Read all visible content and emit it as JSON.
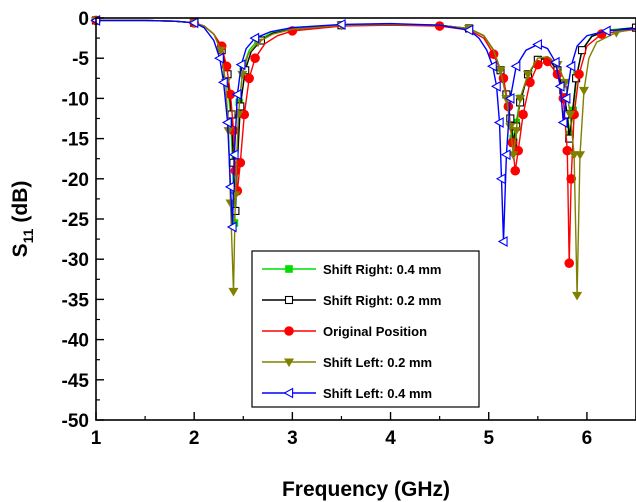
{
  "chart_data": {
    "type": "line",
    "title": "",
    "xlabel": "Frequency (GHz)",
    "ylabel_main": "S",
    "ylabel_sub": "11",
    "ylabel_unit": "(dB)",
    "xlim": [
      1,
      6.5
    ],
    "ylim": [
      -50,
      0
    ],
    "xticks": [
      1,
      2,
      3,
      4,
      5,
      6
    ],
    "yticks": [
      0,
      -5,
      -10,
      -15,
      -20,
      -25,
      -30,
      -35,
      -40,
      -45,
      -50
    ],
    "grid": false,
    "legend_position": "bottom-center",
    "series": [
      {
        "name": "Shift Right: 0.4 mm",
        "color": "#00dd00",
        "marker": "square-filled",
        "points": [
          [
            1,
            -0.3
          ],
          [
            1.5,
            -0.3
          ],
          [
            1.8,
            -0.4
          ],
          [
            2.0,
            -0.6
          ],
          [
            2.1,
            -1.0
          ],
          [
            2.2,
            -2.0
          ],
          [
            2.28,
            -4.0
          ],
          [
            2.33,
            -7.0
          ],
          [
            2.37,
            -12.0
          ],
          [
            2.39,
            -18.0
          ],
          [
            2.41,
            -25.5
          ],
          [
            2.43,
            -18.0
          ],
          [
            2.46,
            -10.5
          ],
          [
            2.5,
            -6.0
          ],
          [
            2.56,
            -4.0
          ],
          [
            2.65,
            -2.7
          ],
          [
            2.8,
            -1.8
          ],
          [
            3.0,
            -1.3
          ],
          [
            3.5,
            -0.9
          ],
          [
            4.0,
            -0.8
          ],
          [
            4.5,
            -0.9
          ],
          [
            4.8,
            -1.3
          ],
          [
            4.95,
            -2.2
          ],
          [
            5.05,
            -4.0
          ],
          [
            5.12,
            -6.5
          ],
          [
            5.18,
            -9.5
          ],
          [
            5.22,
            -12.5
          ],
          [
            5.25,
            -15.0
          ],
          [
            5.28,
            -13.0
          ],
          [
            5.32,
            -10.0
          ],
          [
            5.4,
            -7.0
          ],
          [
            5.5,
            -5.2
          ],
          [
            5.6,
            -5.0
          ],
          [
            5.7,
            -6.5
          ],
          [
            5.76,
            -9.0
          ],
          [
            5.8,
            -12.0
          ],
          [
            5.83,
            -14.5
          ],
          [
            5.86,
            -11.5
          ],
          [
            5.9,
            -7.0
          ],
          [
            5.95,
            -4.0
          ],
          [
            6.05,
            -2.2
          ],
          [
            6.2,
            -1.5
          ],
          [
            6.5,
            -1.2
          ]
        ]
      },
      {
        "name": "Shift Right: 0.2 mm",
        "color": "#000000",
        "marker": "square-open",
        "points": [
          [
            1,
            -0.3
          ],
          [
            1.5,
            -0.3
          ],
          [
            1.8,
            -0.4
          ],
          [
            2.0,
            -0.6
          ],
          [
            2.1,
            -1.0
          ],
          [
            2.2,
            -2.0
          ],
          [
            2.28,
            -4.0
          ],
          [
            2.34,
            -7.0
          ],
          [
            2.38,
            -12.0
          ],
          [
            2.4,
            -18.0
          ],
          [
            2.42,
            -24.0
          ],
          [
            2.44,
            -18.0
          ],
          [
            2.47,
            -11.0
          ],
          [
            2.52,
            -6.5
          ],
          [
            2.58,
            -4.2
          ],
          [
            2.68,
            -2.8
          ],
          [
            2.8,
            -1.9
          ],
          [
            3.0,
            -1.4
          ],
          [
            3.5,
            -0.9
          ],
          [
            4.0,
            -0.8
          ],
          [
            4.5,
            -0.9
          ],
          [
            4.8,
            -1.3
          ],
          [
            4.95,
            -2.2
          ],
          [
            5.05,
            -4.0
          ],
          [
            5.12,
            -6.5
          ],
          [
            5.18,
            -9.5
          ],
          [
            5.22,
            -12.5
          ],
          [
            5.25,
            -15.5
          ],
          [
            5.28,
            -13.5
          ],
          [
            5.32,
            -10.5
          ],
          [
            5.4,
            -7.0
          ],
          [
            5.5,
            -5.2
          ],
          [
            5.6,
            -5.0
          ],
          [
            5.7,
            -6.5
          ],
          [
            5.76,
            -9.0
          ],
          [
            5.8,
            -12.0
          ],
          [
            5.82,
            -15.0
          ],
          [
            5.85,
            -12.0
          ],
          [
            5.89,
            -7.5
          ],
          [
            5.95,
            -4.0
          ],
          [
            6.05,
            -2.3
          ],
          [
            6.2,
            -1.6
          ],
          [
            6.5,
            -1.2
          ]
        ]
      },
      {
        "name": "Original Position",
        "color": "#ff0000",
        "marker": "circle-filled",
        "points": [
          [
            1,
            -0.3
          ],
          [
            1.5,
            -0.3
          ],
          [
            1.8,
            -0.4
          ],
          [
            2.0,
            -0.6
          ],
          [
            2.1,
            -1.0
          ],
          [
            2.2,
            -2.0
          ],
          [
            2.28,
            -3.5
          ],
          [
            2.33,
            -6.0
          ],
          [
            2.37,
            -9.5
          ],
          [
            2.4,
            -14.0
          ],
          [
            2.42,
            -19.0
          ],
          [
            2.44,
            -21.5
          ],
          [
            2.47,
            -18.0
          ],
          [
            2.51,
            -12.0
          ],
          [
            2.56,
            -7.5
          ],
          [
            2.62,
            -5.0
          ],
          [
            2.72,
            -3.2
          ],
          [
            2.85,
            -2.2
          ],
          [
            3.0,
            -1.6
          ],
          [
            3.5,
            -1.0
          ],
          [
            4.0,
            -0.9
          ],
          [
            4.5,
            -1.0
          ],
          [
            4.8,
            -1.5
          ],
          [
            4.95,
            -2.5
          ],
          [
            5.05,
            -4.5
          ],
          [
            5.15,
            -7.5
          ],
          [
            5.2,
            -11.0
          ],
          [
            5.24,
            -15.5
          ],
          [
            5.27,
            -19.0
          ],
          [
            5.3,
            -16.5
          ],
          [
            5.35,
            -12.0
          ],
          [
            5.42,
            -8.0
          ],
          [
            5.5,
            -5.8
          ],
          [
            5.6,
            -5.4
          ],
          [
            5.7,
            -7.0
          ],
          [
            5.76,
            -10.0
          ],
          [
            5.8,
            -16.5
          ],
          [
            5.82,
            -30.5
          ],
          [
            5.84,
            -20.0
          ],
          [
            5.87,
            -12.0
          ],
          [
            5.92,
            -7.0
          ],
          [
            6.0,
            -3.5
          ],
          [
            6.15,
            -2.0
          ],
          [
            6.5,
            -1.4
          ]
        ]
      },
      {
        "name": "Shift Left: 0.2 mm",
        "color": "#808000",
        "marker": "triangle-down-filled",
        "points": [
          [
            1,
            -0.3
          ],
          [
            1.5,
            -0.3
          ],
          [
            1.8,
            -0.4
          ],
          [
            2.0,
            -0.6
          ],
          [
            2.1,
            -1.0
          ],
          [
            2.2,
            -2.0
          ],
          [
            2.27,
            -4.0
          ],
          [
            2.32,
            -8.0
          ],
          [
            2.35,
            -14.0
          ],
          [
            2.37,
            -23.0
          ],
          [
            2.4,
            -34.0
          ],
          [
            2.42,
            -22.0
          ],
          [
            2.45,
            -12.0
          ],
          [
            2.49,
            -7.0
          ],
          [
            2.55,
            -4.5
          ],
          [
            2.65,
            -3.0
          ],
          [
            2.8,
            -2.0
          ],
          [
            3.0,
            -1.4
          ],
          [
            3.5,
            -0.9
          ],
          [
            4.0,
            -0.8
          ],
          [
            4.5,
            -0.9
          ],
          [
            4.8,
            -1.3
          ],
          [
            4.95,
            -2.2
          ],
          [
            5.05,
            -4.0
          ],
          [
            5.12,
            -6.5
          ],
          [
            5.18,
            -10.0
          ],
          [
            5.22,
            -13.5
          ],
          [
            5.25,
            -17.0
          ],
          [
            5.28,
            -14.0
          ],
          [
            5.32,
            -10.0
          ],
          [
            5.4,
            -7.0
          ],
          [
            5.5,
            -5.0
          ],
          [
            5.6,
            -4.8
          ],
          [
            5.7,
            -5.8
          ],
          [
            5.78,
            -8.0
          ],
          [
            5.83,
            -12.0
          ],
          [
            5.87,
            -17.0
          ],
          [
            5.9,
            -34.5
          ],
          [
            5.93,
            -17.0
          ],
          [
            5.97,
            -9.0
          ],
          [
            6.02,
            -5.0
          ],
          [
            6.1,
            -3.0
          ],
          [
            6.3,
            -1.8
          ],
          [
            6.5,
            -1.3
          ]
        ]
      },
      {
        "name": "Shift Left: 0.4 mm",
        "color": "#0000ff",
        "marker": "triangle-left-open",
        "points": [
          [
            1,
            -0.3
          ],
          [
            1.5,
            -0.3
          ],
          [
            1.8,
            -0.4
          ],
          [
            2.0,
            -0.6
          ],
          [
            2.1,
            -1.2
          ],
          [
            2.2,
            -2.8
          ],
          [
            2.26,
            -5.0
          ],
          [
            2.3,
            -8.0
          ],
          [
            2.34,
            -13.0
          ],
          [
            2.37,
            -21.0
          ],
          [
            2.39,
            -26.0
          ],
          [
            2.41,
            -17.0
          ],
          [
            2.44,
            -9.5
          ],
          [
            2.48,
            -5.8
          ],
          [
            2.53,
            -3.8
          ],
          [
            2.62,
            -2.5
          ],
          [
            2.78,
            -1.7
          ],
          [
            3.0,
            -1.2
          ],
          [
            3.5,
            -0.8
          ],
          [
            4.0,
            -0.7
          ],
          [
            4.5,
            -0.9
          ],
          [
            4.8,
            -1.5
          ],
          [
            4.9,
            -2.5
          ],
          [
            4.98,
            -4.0
          ],
          [
            5.04,
            -6.0
          ],
          [
            5.08,
            -8.5
          ],
          [
            5.11,
            -13.0
          ],
          [
            5.13,
            -20.0
          ],
          [
            5.15,
            -27.8
          ],
          [
            5.18,
            -17.0
          ],
          [
            5.22,
            -10.0
          ],
          [
            5.28,
            -6.0
          ],
          [
            5.38,
            -4.0
          ],
          [
            5.5,
            -3.3
          ],
          [
            5.6,
            -3.8
          ],
          [
            5.68,
            -5.5
          ],
          [
            5.73,
            -8.5
          ],
          [
            5.76,
            -13.0
          ],
          [
            5.79,
            -10.0
          ],
          [
            5.84,
            -6.0
          ],
          [
            5.9,
            -3.5
          ],
          [
            6.0,
            -2.2
          ],
          [
            6.2,
            -1.6
          ],
          [
            6.5,
            -1.3
          ]
        ]
      }
    ]
  }
}
